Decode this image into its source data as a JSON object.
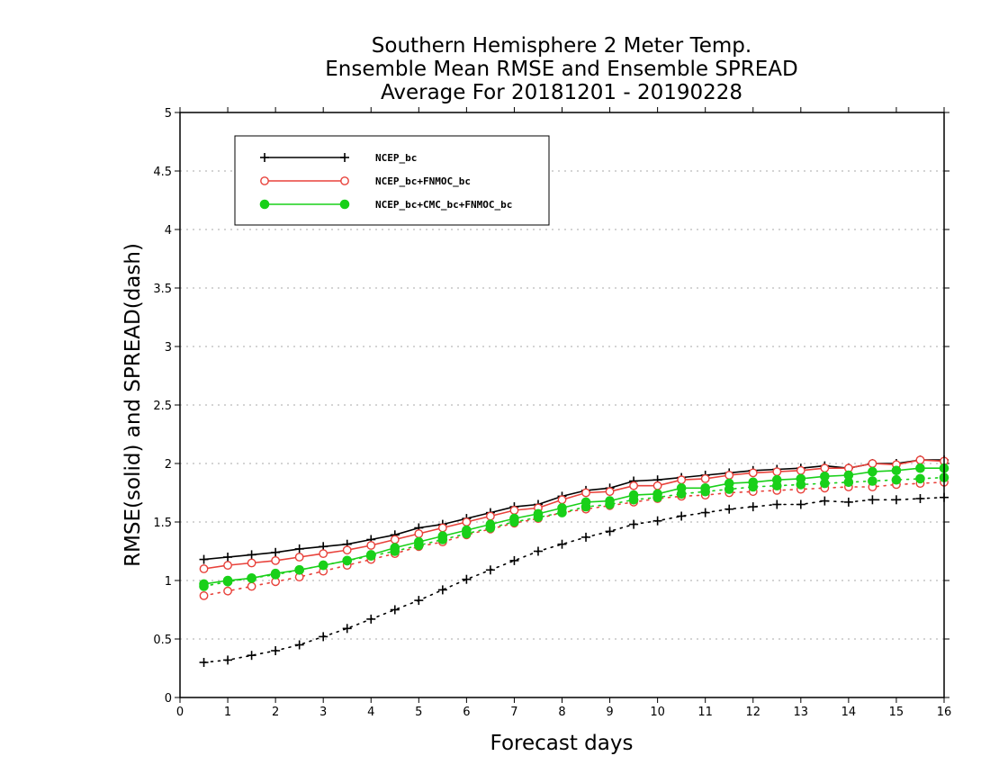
{
  "chart_data": {
    "type": "line",
    "title": [
      "Southern Hemisphere 2 Meter Temp.",
      "Ensemble Mean RMSE and Ensemble SPREAD",
      "Average For 20181201 - 20190228"
    ],
    "xlabel": "Forecast days",
    "ylabel": "RMSE(solid) and SPREAD(dash)",
    "xlim": [
      0,
      16
    ],
    "ylim": [
      0,
      5
    ],
    "xticks": [
      "0",
      "1",
      "2",
      "3",
      "4",
      "5",
      "6",
      "7",
      "8",
      "9",
      "10",
      "11",
      "12",
      "13",
      "14",
      "15",
      "16"
    ],
    "yticks": [
      "0",
      "0.5",
      "1",
      "1.5",
      "2",
      "2.5",
      "3",
      "3.5",
      "4",
      "4.5",
      "5"
    ],
    "grid": "horizontal dotted",
    "legend_position": "top-left",
    "x": [
      0.5,
      1,
      1.5,
      2,
      2.5,
      3,
      3.5,
      4,
      4.5,
      5,
      5.5,
      6,
      6.5,
      7,
      7.5,
      8,
      8.5,
      9,
      9.5,
      10,
      10.5,
      11,
      11.5,
      12,
      12.5,
      13,
      13.5,
      14,
      14.5,
      15,
      15.5,
      16
    ],
    "series": [
      {
        "name": "NCEP_bc",
        "color": "#000000",
        "marker": "plus",
        "rmse": [
          1.18,
          1.2,
          1.22,
          1.24,
          1.27,
          1.29,
          1.31,
          1.35,
          1.39,
          1.45,
          1.48,
          1.53,
          1.58,
          1.63,
          1.65,
          1.72,
          1.77,
          1.79,
          1.85,
          1.86,
          1.88,
          1.9,
          1.92,
          1.94,
          1.95,
          1.96,
          1.98,
          1.96,
          2.0,
          2.0,
          2.03,
          2.03
        ],
        "spread": [
          0.3,
          0.32,
          0.36,
          0.4,
          0.45,
          0.52,
          0.59,
          0.67,
          0.75,
          0.83,
          0.92,
          1.01,
          1.09,
          1.17,
          1.25,
          1.31,
          1.37,
          1.42,
          1.48,
          1.51,
          1.55,
          1.58,
          1.61,
          1.63,
          1.65,
          1.65,
          1.68,
          1.67,
          1.69,
          1.69,
          1.7,
          1.71
        ]
      },
      {
        "name": "NCEP_bc+FNMOC_bc",
        "color": "#e8413a",
        "marker": "open-circle",
        "rmse": [
          1.1,
          1.13,
          1.15,
          1.17,
          1.2,
          1.23,
          1.26,
          1.3,
          1.35,
          1.4,
          1.45,
          1.5,
          1.55,
          1.6,
          1.62,
          1.69,
          1.75,
          1.76,
          1.81,
          1.81,
          1.86,
          1.87,
          1.9,
          1.92,
          1.93,
          1.94,
          1.96,
          1.96,
          2.0,
          1.99,
          2.03,
          2.02
        ],
        "spread": [
          0.87,
          0.91,
          0.95,
          0.99,
          1.03,
          1.08,
          1.13,
          1.18,
          1.23,
          1.29,
          1.33,
          1.39,
          1.44,
          1.49,
          1.53,
          1.58,
          1.61,
          1.64,
          1.67,
          1.7,
          1.72,
          1.73,
          1.75,
          1.76,
          1.77,
          1.78,
          1.79,
          1.8,
          1.8,
          1.82,
          1.83,
          1.84
        ]
      },
      {
        "name": "NCEP_bc+CMC_bc+FNMOC_bc",
        "color": "#19d019",
        "marker": "filled-circle",
        "rmse": [
          0.97,
          1.0,
          1.02,
          1.06,
          1.09,
          1.13,
          1.17,
          1.22,
          1.28,
          1.33,
          1.38,
          1.43,
          1.48,
          1.53,
          1.57,
          1.62,
          1.67,
          1.68,
          1.73,
          1.74,
          1.79,
          1.79,
          1.83,
          1.84,
          1.86,
          1.87,
          1.89,
          1.9,
          1.93,
          1.94,
          1.96,
          1.96
        ],
        "spread": [
          0.95,
          0.99,
          1.02,
          1.05,
          1.09,
          1.13,
          1.17,
          1.21,
          1.25,
          1.3,
          1.35,
          1.4,
          1.45,
          1.5,
          1.54,
          1.58,
          1.63,
          1.65,
          1.69,
          1.71,
          1.74,
          1.76,
          1.78,
          1.8,
          1.81,
          1.82,
          1.83,
          1.84,
          1.85,
          1.86,
          1.87,
          1.88
        ]
      }
    ]
  }
}
